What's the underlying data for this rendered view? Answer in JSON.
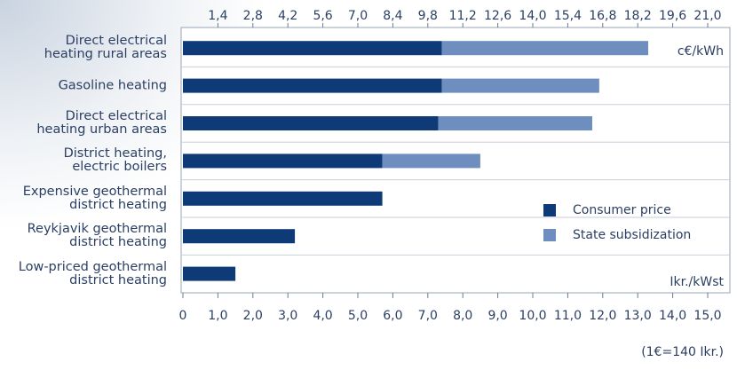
{
  "chart_data": {
    "type": "stacked-barh",
    "categories": [
      "Direct electrical\nheating rural areas",
      "Gasoline heating",
      "Direct electrical\nheating urban areas",
      "District heating,\nelectric boilers",
      "Expensive geothermal\ndistrict heating",
      "Reykjavik geothermal\ndistrict heating",
      "Low-priced geothermal\ndistrict heating"
    ],
    "series": [
      {
        "name": "Consumer price",
        "color": "#0e3b77",
        "values": [
          7.4,
          7.4,
          7.3,
          5.7,
          5.7,
          3.2,
          1.5
        ]
      },
      {
        "name": "State subsidization",
        "color": "#6e8ec0",
        "values": [
          5.9,
          4.5,
          4.4,
          2.8,
          0,
          0,
          0
        ]
      }
    ],
    "xlim": [
      0,
      15
    ],
    "xticks": [
      0,
      {
        "value": 1,
        "label": "1,0"
      },
      {
        "value": 2,
        "label": "2,0"
      },
      {
        "value": 3,
        "label": "3,0"
      },
      {
        "value": 4,
        "label": "4,0"
      },
      {
        "value": 5,
        "label": "5,0"
      },
      {
        "value": 6,
        "label": "6,0"
      },
      {
        "value": 7,
        "label": "7,0"
      },
      {
        "value": 8,
        "label": "8,0"
      },
      {
        "value": 9,
        "label": "9,0"
      },
      {
        "value": 10,
        "label": "10,0"
      },
      {
        "value": 11,
        "label": "11,0"
      },
      {
        "value": 12,
        "label": "12,0"
      },
      {
        "value": 13,
        "label": "13,0"
      },
      {
        "value": 14,
        "label": "14,0"
      },
      {
        "value": 15,
        "label": "15,0"
      }
    ],
    "x2lim": [
      0,
      21
    ],
    "x2ticks": [
      {
        "value": 1.4,
        "label": "1,4"
      },
      {
        "value": 2.8,
        "label": "2,8"
      },
      {
        "value": 4.2,
        "label": "4,2"
      },
      {
        "value": 5.6,
        "label": "5,6"
      },
      {
        "value": 7.0,
        "label": "7,0"
      },
      {
        "value": 8.4,
        "label": "8,4"
      },
      {
        "value": 9.8,
        "label": "9,8"
      },
      {
        "value": 11.2,
        "label": "11,2"
      },
      {
        "value": 12.6,
        "label": "12,6"
      },
      {
        "value": 14.0,
        "label": "14,0"
      },
      {
        "value": 15.4,
        "label": "15,4"
      },
      {
        "value": 16.8,
        "label": "16,8"
      },
      {
        "value": 18.2,
        "label": "18,2"
      },
      {
        "value": 19.6,
        "label": "19,6"
      },
      {
        "value": 21.0,
        "label": "21,0"
      }
    ],
    "x2_unit": "c€/kWh",
    "x_unit": "Ikr./kWst",
    "note": "(1€=140 Ikr.)"
  }
}
